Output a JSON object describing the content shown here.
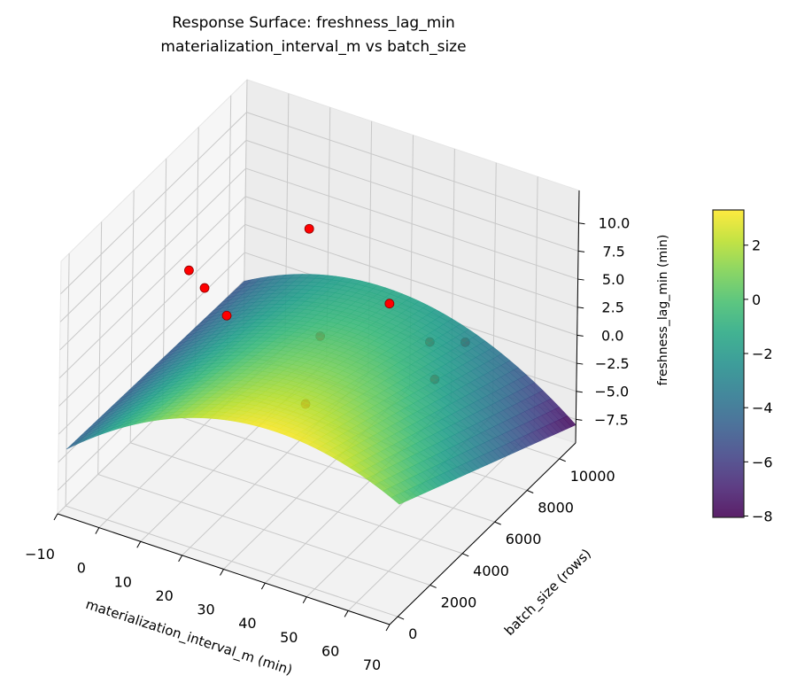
{
  "chart_data": {
    "type": "surface3d",
    "title": "Response Surface: freshness_lag_min",
    "subtitle": "materialization_interval_m vs batch_size",
    "xlabel": "materialization_interval_m (min)",
    "ylabel": "batch_size (rows)",
    "zlabel": "freshness_lag_min (min)",
    "xlim": [
      -10,
      70
    ],
    "ylim": [
      -500,
      11000
    ],
    "zlim": [
      -9.6,
      12.9
    ],
    "xticks": [
      "−10",
      "0",
      "10",
      "20",
      "30",
      "40",
      "50",
      "60",
      "70"
    ],
    "xtick_values": [
      -10,
      0,
      10,
      20,
      30,
      40,
      50,
      60,
      70
    ],
    "yticks": [
      "0",
      "2000",
      "4000",
      "6000",
      "8000",
      "10000"
    ],
    "ytick_values": [
      0,
      2000,
      4000,
      6000,
      8000,
      10000
    ],
    "zticks": [
      "−7.5",
      "−5.0",
      "−2.5",
      "0.0",
      "2.5",
      "5.0",
      "7.5",
      "10.0"
    ],
    "ztick_values": [
      -7.5,
      -5,
      -2.5,
      0,
      2.5,
      5,
      7.5,
      10
    ],
    "grid": true,
    "colormap": "viridis",
    "surface": {
      "x_range": [
        -10,
        70
      ],
      "y_range": [
        0,
        11000
      ],
      "model": "z = 3.2 - 0.0031*(x-40)^2 - y*(0.5 + 7.9*(x+10)/80)/11000"
    },
    "scatter": {
      "color": "#ff0000",
      "points": [
        {
          "x": 7.5,
          "y": 2950,
          "z": 9.4
        },
        {
          "x": 11.3,
          "y": 2950,
          "z": 8.3
        },
        {
          "x": 16.7,
          "y": 2950,
          "z": 6.5
        },
        {
          "x": 18.6,
          "y": 7550,
          "z": 8.0
        },
        {
          "x": 42.5,
          "y": 6400,
          "z": 5.9
        },
        {
          "x": 21.6,
          "y": 7550,
          "z": -1.2
        },
        {
          "x": 39.1,
          "y": 9850,
          "z": -2.8
        },
        {
          "x": 45.4,
          "y": 10425,
          "z": -2.85
        },
        {
          "x": 44.8,
          "y": 8700,
          "z": -3.8
        },
        {
          "x": 35.9,
          "y": 2950,
          "z": 1.0
        }
      ]
    },
    "colorbar": {
      "range": [
        -8.05,
        3.3
      ],
      "ticks": [
        "2",
        "0",
        "−2",
        "−4",
        "−6",
        "−8"
      ],
      "tick_values": [
        2,
        0,
        -2,
        -4,
        -6,
        -8
      ],
      "placement": "right"
    }
  }
}
